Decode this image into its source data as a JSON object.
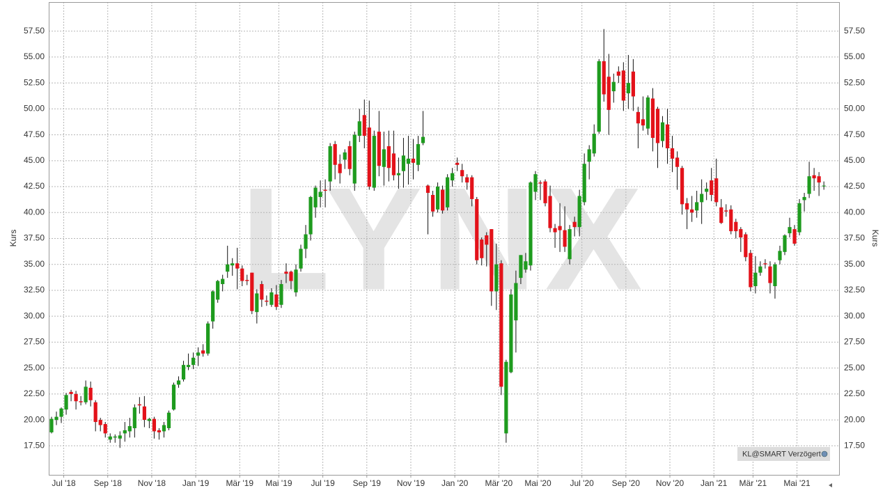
{
  "chart_data": {
    "type": "candlestick",
    "watermark": "LYNX",
    "ylabel": "Kurs",
    "source_note": "KL@SMART Verzögert",
    "up_color": "#1e9b1e",
    "down_color": "#e3121a",
    "grid": true,
    "ylim": [
      14.7,
      60.3
    ],
    "yticks": [
      {
        "value": 17.5,
        "label": "17.50"
      },
      {
        "value": 20,
        "label": "20.00"
      },
      {
        "value": 22.5,
        "label": "22.50"
      },
      {
        "value": 25,
        "label": "25.00"
      },
      {
        "value": 27.5,
        "label": "27.50"
      },
      {
        "value": 30,
        "label": "30.00"
      },
      {
        "value": 32.5,
        "label": "32.50"
      },
      {
        "value": 35,
        "label": "35.00"
      },
      {
        "value": 37.5,
        "label": "37.50"
      },
      {
        "value": 40,
        "label": "40.00"
      },
      {
        "value": 42.5,
        "label": "42.50"
      },
      {
        "value": 45,
        "label": "45.00"
      },
      {
        "value": 47.5,
        "label": "47.50"
      },
      {
        "value": 50,
        "label": "50.00"
      },
      {
        "value": 52.5,
        "label": "52.50"
      },
      {
        "value": 55,
        "label": "55.00"
      },
      {
        "value": 57.5,
        "label": "57.50"
      }
    ],
    "categories": [
      null,
      null,
      "Jul '18",
      null,
      null,
      null,
      null,
      null,
      null,
      null,
      null,
      "Sep '18",
      null,
      null,
      null,
      null,
      null,
      null,
      null,
      null,
      "Nov '18",
      null,
      null,
      null,
      null,
      null,
      null,
      null,
      null,
      "Jan '19",
      null,
      null,
      null,
      null,
      null,
      null,
      null,
      null,
      "Mär '19",
      null,
      null,
      null,
      null,
      null,
      null,
      null,
      "Mai '19",
      null,
      null,
      null,
      null,
      null,
      null,
      null,
      null,
      "Jul '19",
      null,
      null,
      null,
      null,
      null,
      null,
      null,
      null,
      "Sep '19",
      null,
      null,
      null,
      null,
      null,
      null,
      null,
      null,
      "Nov '19",
      null,
      null,
      null,
      null,
      null,
      null,
      null,
      null,
      "Jan '20",
      null,
      null,
      null,
      null,
      null,
      null,
      null,
      null,
      "Mär '20",
      null,
      null,
      null,
      null,
      null,
      null,
      null,
      "Mai '20",
      null,
      null,
      null,
      null,
      null,
      null,
      null,
      null,
      "Jul '20",
      null,
      null,
      null,
      null,
      null,
      null,
      null,
      null,
      "Sep '20",
      null,
      null,
      null,
      null,
      null,
      null,
      null,
      null,
      "Nov '20",
      null,
      null,
      null,
      null,
      null,
      null,
      null,
      null,
      "Jan '21",
      null,
      null,
      null,
      null,
      null,
      null,
      null,
      "Mär '21",
      null,
      null,
      null,
      null,
      null,
      null,
      null,
      null,
      "Mai '21",
      null,
      null,
      null,
      null,
      null,
      null
    ],
    "open": [
      18.8,
      20.0,
      20.3,
      21.0,
      22.7,
      22.5,
      21.8,
      21.7,
      23.1,
      21.7,
      20.0,
      19.6,
      18.1,
      18.3,
      18.2,
      18.7,
      18.9,
      19.2,
      21.5,
      21.3,
      19.9,
      20.1,
      19.0,
      18.9,
      19.2,
      21.0,
      23.4,
      23.9,
      25.1,
      25.3,
      26.2,
      26.7,
      26.4,
      29.5,
      31.6,
      33.1,
      34.3,
      34.9,
      35.1,
      34.6,
      33.5,
      34.2,
      30.4,
      33.1,
      31.5,
      31.1,
      32.1,
      31.1,
      34.3,
      34.3,
      32.3,
      34.6,
      36.5,
      37.9,
      40.5,
      41.5,
      42.2,
      43.0,
      46.6,
      44.7,
      45.1,
      46.4,
      42.8,
      47.4,
      49.4,
      48.2,
      42.4,
      47.8,
      44.4,
      46.4,
      45.7,
      43.6,
      44.0,
      44.7,
      45.2,
      44.6,
      46.7,
      42.6,
      41.7,
      40.3,
      42.2,
      40.5,
      43.1,
      44.8,
      44.1,
      43.4,
      43.4,
      41.3,
      37.4,
      37.8,
      38.4,
      32.4,
      35.1,
      18.7,
      24.6,
      29.6,
      33.7,
      34.5,
      34.9,
      42.0,
      42.9,
      43.0,
      41.6,
      38.5,
      38.7,
      38.3,
      35.5,
      39.1,
      38.6,
      41.0,
      44.9,
      45.7,
      47.8,
      54.6,
      53.1,
      51.7,
      53.6,
      53.7,
      51.5,
      53.6,
      49.7,
      49.0,
      48.1,
      51.0,
      50.0,
      46.9,
      48.5,
      46.2,
      45.3,
      44.3,
      40.9,
      40.3,
      40.2,
      41.0,
      42.0,
      43.1,
      43.3,
      40.5,
      40.2,
      40.3,
      39.1,
      38.4,
      37.9,
      36.1,
      32.9,
      34.2,
      35.1,
      34.8,
      32.9,
      35.4,
      36.2,
      38.0,
      38.4,
      38.1,
      41.2,
      41.8,
      43.6,
      43.5,
      42.6
    ],
    "high": [
      20.3,
      20.8,
      21.2,
      22.6,
      22.9,
      22.8,
      22.3,
      23.8,
      23.7,
      21.9,
      20.2,
      19.8,
      18.7,
      18.6,
      18.9,
      19.8,
      20.2,
      21.5,
      22.2,
      22.3,
      20.2,
      20.3,
      19.2,
      19.8,
      20.9,
      23.6,
      24.2,
      25.7,
      26.4,
      26.5,
      27.0,
      27.3,
      29.5,
      32.5,
      33.5,
      34.0,
      36.8,
      35.6,
      36.6,
      34.9,
      34.0,
      34.2,
      32.6,
      33.4,
      32.0,
      32.7,
      33.0,
      33.5,
      35.1,
      34.4,
      35.0,
      36.9,
      38.8,
      41.6,
      42.6,
      43.1,
      43.2,
      46.7,
      46.9,
      45.6,
      46.1,
      46.9,
      47.8,
      50.0,
      50.9,
      50.8,
      47.9,
      49.8,
      47.8,
      47.9,
      47.9,
      45.3,
      47.2,
      47.4,
      47.1,
      47.4,
      49.8,
      42.7,
      42.1,
      42.9,
      42.6,
      43.7,
      44.3,
      45.3,
      44.7,
      43.7,
      43.6,
      41.5,
      37.6,
      38.1,
      38.4,
      37.0,
      35.4,
      25.8,
      32.6,
      34.4,
      35.9,
      36.1,
      43.0,
      44.0,
      43.1,
      43.2,
      42.6,
      38.9,
      40.9,
      40.6,
      38.8,
      39.6,
      42.2,
      45.7,
      46.5,
      48.5,
      54.8,
      57.7,
      55.3,
      53.4,
      54.1,
      54.5,
      55.2,
      54.8,
      50.2,
      51.2,
      51.3,
      52.0,
      50.2,
      49.3,
      50.0,
      47.4,
      45.9,
      44.5,
      41.4,
      41.6,
      42.1,
      43.2,
      42.9,
      44.3,
      45.2,
      41.3,
      40.8,
      40.7,
      39.4,
      38.6,
      38.1,
      36.4,
      35.8,
      35.3,
      35.5,
      35.3,
      35.2,
      36.8,
      37.9,
      39.5,
      38.8,
      41.3,
      41.9,
      44.9,
      44.3,
      43.9,
      43.0
    ],
    "low": [
      18.7,
      19.5,
      19.7,
      20.5,
      21.8,
      21.0,
      21.4,
      21.5,
      21.3,
      18.9,
      18.9,
      18.3,
      17.8,
      17.8,
      17.3,
      17.9,
      18.3,
      18.3,
      20.6,
      19.3,
      19.2,
      18.2,
      18.1,
      18.3,
      19.0,
      20.9,
      23.1,
      23.7,
      24.8,
      24.9,
      25.2,
      26.1,
      26.2,
      28.8,
      31.3,
      32.4,
      33.7,
      33.9,
      32.6,
      32.9,
      33.0,
      30.2,
      29.3,
      30.9,
      31.0,
      30.9,
      30.6,
      30.8,
      33.2,
      32.6,
      31.9,
      34.3,
      35.6,
      37.3,
      39.5,
      40.5,
      40.5,
      42.1,
      43.2,
      42.8,
      44.2,
      43.6,
      42.1,
      46.8,
      46.2,
      42.2,
      42.1,
      43.5,
      42.6,
      43.0,
      43.1,
      42.3,
      42.4,
      42.7,
      43.2,
      44.0,
      46.5,
      37.9,
      39.6,
      40.0,
      39.9,
      40.2,
      42.5,
      44.0,
      42.9,
      42.2,
      40.6,
      35.0,
      34.9,
      34.8,
      31.0,
      30.6,
      22.4,
      17.8,
      24.5,
      26.5,
      33.1,
      34.2,
      34.4,
      41.2,
      41.2,
      40.6,
      38.1,
      36.6,
      36.2,
      36.2,
      35.0,
      37.7,
      37.7,
      40.7,
      43.2,
      45.4,
      47.6,
      50.7,
      47.5,
      50.6,
      52.5,
      49.8,
      50.0,
      49.8,
      46.2,
      47.9,
      47.5,
      45.9,
      44.3,
      46.3,
      44.7,
      43.9,
      42.2,
      39.8,
      38.4,
      39.1,
      39.5,
      38.9,
      41.2,
      41.1,
      40.6,
      38.9,
      39.6,
      37.9,
      37.5,
      36.2,
      35.3,
      32.4,
      32.2,
      33.9,
      34.6,
      32.2,
      31.7,
      35.0,
      35.9,
      37.6,
      36.8,
      37.8,
      40.1,
      41.4,
      42.1,
      41.6,
      42.2
    ],
    "close": [
      20.1,
      20.3,
      21.1,
      22.4,
      22.5,
      21.8,
      21.7,
      23.2,
      21.9,
      19.8,
      19.5,
      18.7,
      18.4,
      18.4,
      18.5,
      19.0,
      19.4,
      21.2,
      21.4,
      20.0,
      20.1,
      18.9,
      18.8,
      19.5,
      20.7,
      23.4,
      23.8,
      25.3,
      25.3,
      26.0,
      26.5,
      26.4,
      29.3,
      32.4,
      33.4,
      33.6,
      35.0,
      35.1,
      34.6,
      33.4,
      33.4,
      30.5,
      32.2,
      31.6,
      31.4,
      32.3,
      30.9,
      33.1,
      34.1,
      33.4,
      34.5,
      36.5,
      37.9,
      41.5,
      42.4,
      42.0,
      42.1,
      46.4,
      44.6,
      43.8,
      45.8,
      44.2,
      47.5,
      48.8,
      47.4,
      42.5,
      47.4,
      44.5,
      46.1,
      44.3,
      43.6,
      43.8,
      45.5,
      45.2,
      44.8,
      46.6,
      47.3,
      41.9,
      40.1,
      42.5,
      40.2,
      43.4,
      43.8,
      44.6,
      43.5,
      42.9,
      41.3,
      35.4,
      35.6,
      36.9,
      32.4,
      35.0,
      23.2,
      25.6,
      32.1,
      33.2,
      35.9,
      35.3,
      42.9,
      43.7,
      42.8,
      40.9,
      38.5,
      38.1,
      38.3,
      36.7,
      38.4,
      38.6,
      41.6,
      44.7,
      46.1,
      47.6,
      54.6,
      51.4,
      49.9,
      52.6,
      53.2,
      50.8,
      52.5,
      51.2,
      48.6,
      48.4,
      51.1,
      47.2,
      46.7,
      48.7,
      46.2,
      45.2,
      44.4,
      40.8,
      40.3,
      40.0,
      41.0,
      41.8,
      42.3,
      41.7,
      41.0,
      39.0,
      40.1,
      38.2,
      38.2,
      37.6,
      35.7,
      32.8,
      34.2,
      34.8,
      35.0,
      33.2,
      35.0,
      36.3,
      37.8,
      38.6,
      37.0,
      40.9,
      41.5,
      43.5,
      43.3,
      42.9,
      42.6
    ]
  }
}
